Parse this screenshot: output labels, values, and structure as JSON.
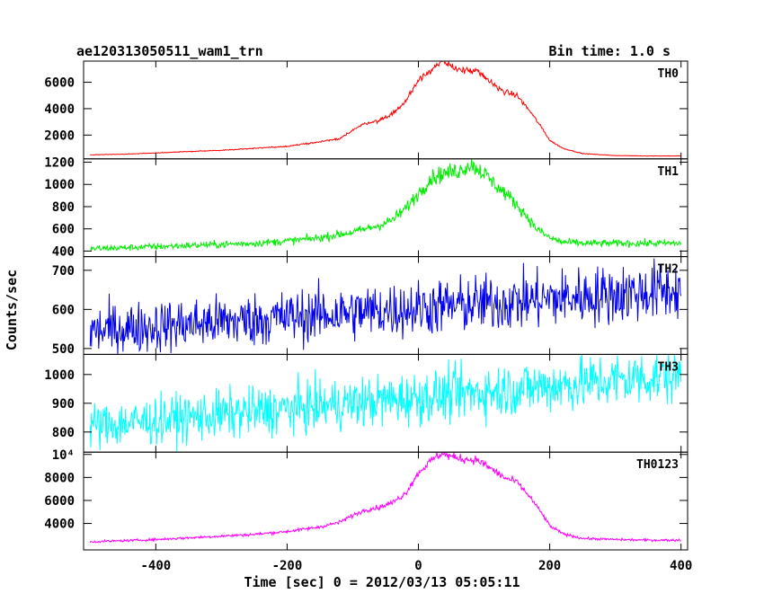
{
  "header": {
    "title": "ae120313050511_wam1_trn",
    "bin_time": "Bin time: 1.0 s"
  },
  "chart_data": {
    "type": "line",
    "title": "ae120313050511_wam1_trn",
    "xlabel": "Time [sec] 0 = 2012/03/13 05:05:11",
    "ylabel": "Counts/sec",
    "xlim": [
      -510,
      410
    ],
    "x_ticks": [
      -400,
      -200,
      0,
      200,
      400
    ],
    "bin_time_s": 1.0,
    "grid": false,
    "panels": [
      {
        "name": "TH0",
        "color": "#ff0000",
        "ylim": [
          200,
          7600
        ],
        "y_ticks": [
          2000,
          4000,
          6000
        ],
        "y_tick_labels": [
          "2000",
          "4000",
          "6000"
        ],
        "x": [
          -500,
          -450,
          -400,
          -350,
          -300,
          -250,
          -200,
          -150,
          -120,
          -100,
          -80,
          -60,
          -40,
          -20,
          0,
          20,
          35,
          50,
          70,
          90,
          110,
          130,
          150,
          170,
          190,
          200,
          220,
          250,
          300,
          350,
          400
        ],
        "y": [
          500,
          550,
          650,
          750,
          850,
          1000,
          1150,
          1500,
          1700,
          2400,
          2900,
          3100,
          3600,
          4500,
          6200,
          7000,
          7500,
          7200,
          6900,
          6800,
          6000,
          5300,
          5000,
          3800,
          2400,
          1600,
          1000,
          600,
          450,
          420,
          420
        ],
        "noise": 0.02
      },
      {
        "name": "TH1",
        "color": "#00ee00",
        "ylim": [
          350,
          1230
        ],
        "y_ticks": [
          400,
          600,
          800,
          1000,
          1200
        ],
        "y_tick_labels": [
          "400",
          "600",
          "800",
          "1000",
          "1200"
        ],
        "x": [
          -500,
          -450,
          -400,
          -350,
          -300,
          -250,
          -200,
          -150,
          -120,
          -100,
          -80,
          -60,
          -40,
          -20,
          0,
          20,
          40,
          60,
          80,
          100,
          120,
          140,
          160,
          180,
          200,
          220,
          250,
          300,
          350,
          400
        ],
        "y": [
          420,
          430,
          440,
          450,
          460,
          470,
          490,
          520,
          550,
          570,
          600,
          630,
          680,
          780,
          920,
          1060,
          1100,
          1120,
          1180,
          1100,
          980,
          880,
          750,
          600,
          520,
          480,
          470,
          470,
          470,
          470
        ],
        "noise": 0.035
      },
      {
        "name": "TH2",
        "color": "#0000ee",
        "ylim": [
          485,
          735
        ],
        "y_ticks": [
          500,
          600,
          700
        ],
        "y_tick_labels": [
          "500",
          "600",
          "700"
        ],
        "x": [
          -500,
          400
        ],
        "y": [
          545,
          650
        ],
        "noise": 0.06
      },
      {
        "name": "TH3",
        "color": "#00ffff",
        "ylim": [
          730,
          1070
        ],
        "y_ticks": [
          800,
          900,
          1000
        ],
        "y_tick_labels": [
          "800",
          "900",
          "1000"
        ],
        "x": [
          -500,
          400
        ],
        "y": [
          820,
          1000
        ],
        "noise": 0.05
      },
      {
        "name": "TH0123",
        "color": "#ff00ff",
        "ylim": [
          1700,
          10200
        ],
        "y_ticks": [
          4000,
          6000,
          8000,
          10000
        ],
        "y_tick_labels": [
          "4000",
          "6000",
          "8000",
          "10⁴"
        ],
        "x": [
          -500,
          -450,
          -400,
          -350,
          -300,
          -250,
          -200,
          -150,
          -120,
          -100,
          -80,
          -60,
          -40,
          -20,
          0,
          20,
          35,
          50,
          70,
          90,
          110,
          130,
          150,
          170,
          190,
          200,
          220,
          250,
          300,
          350,
          400
        ],
        "y": [
          2400,
          2500,
          2600,
          2750,
          2900,
          3050,
          3300,
          3700,
          4100,
          4700,
          5200,
          5400,
          5800,
          6600,
          8400,
          9500,
          10100,
          9800,
          9600,
          9500,
          8800,
          8000,
          7600,
          6300,
          4700,
          3800,
          3100,
          2700,
          2600,
          2550,
          2550
        ],
        "noise": 0.02
      }
    ],
    "x_tick_labels": [
      "-400",
      "-200",
      "0",
      "200",
      "400"
    ]
  }
}
